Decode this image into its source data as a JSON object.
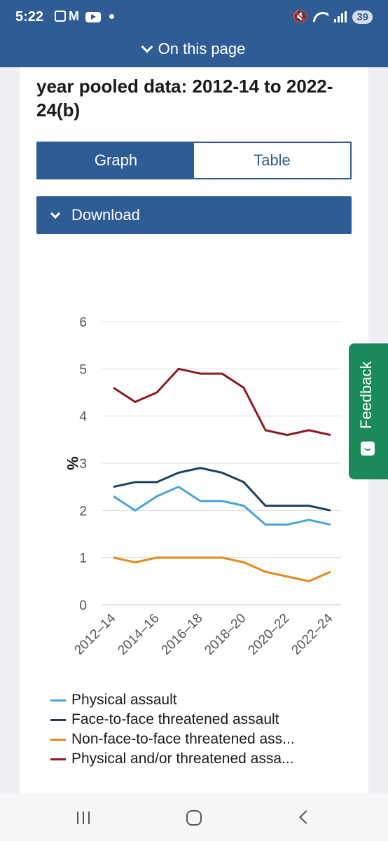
{
  "status_bar": {
    "time": "5:22",
    "mail_glyph": "M",
    "battery": "39"
  },
  "header": {
    "on_this_page": "On this page"
  },
  "chart_title": "year pooled data: 2012-14 to 2022-24(b)",
  "tabs": [
    {
      "label": "Graph",
      "active": true
    },
    {
      "label": "Table",
      "active": false
    }
  ],
  "download": {
    "label": "Download"
  },
  "feedback": {
    "label": "Feedback"
  },
  "chart_data": {
    "type": "line",
    "title": "",
    "xlabel": "",
    "ylabel": "%",
    "ylim": [
      0,
      6
    ],
    "yticks": [
      "0",
      "1",
      "2",
      "3",
      "4",
      "5",
      "6"
    ],
    "x": [
      "2012–14",
      "2013–15",
      "2014–16",
      "2015–17",
      "2016–18",
      "2017–19",
      "2018–20",
      "2019–21",
      "2020–22",
      "2021–23",
      "2022–24"
    ],
    "xtick_labels": [
      "2012–14",
      "2014–16",
      "2016–18",
      "2018–20",
      "2020–22",
      "2022–24"
    ],
    "grid": true,
    "legend_position": "bottom",
    "series": [
      {
        "name": "Physical assault",
        "color": "#4aa3d6",
        "values": [
          2.3,
          2.0,
          2.3,
          2.5,
          2.2,
          2.2,
          2.1,
          1.7,
          1.7,
          1.8,
          1.7
        ]
      },
      {
        "name": "Face-to-face threatened assault",
        "color": "#1b3f5e",
        "values": [
          2.5,
          2.6,
          2.6,
          2.8,
          2.9,
          2.8,
          2.6,
          2.1,
          2.1,
          2.1,
          2.0
        ]
      },
      {
        "name": "Non-face-to-face threatened ass...",
        "color": "#e08a1e",
        "values": [
          1.0,
          0.9,
          1.0,
          1.0,
          1.0,
          1.0,
          0.9,
          0.7,
          0.6,
          0.5,
          0.7
        ]
      },
      {
        "name": "Physical and/or threatened assa...",
        "color": "#8c1a1f",
        "values": [
          4.6,
          4.3,
          4.5,
          5.0,
          4.9,
          4.9,
          4.6,
          3.7,
          3.6,
          3.7,
          3.6
        ]
      }
    ]
  }
}
